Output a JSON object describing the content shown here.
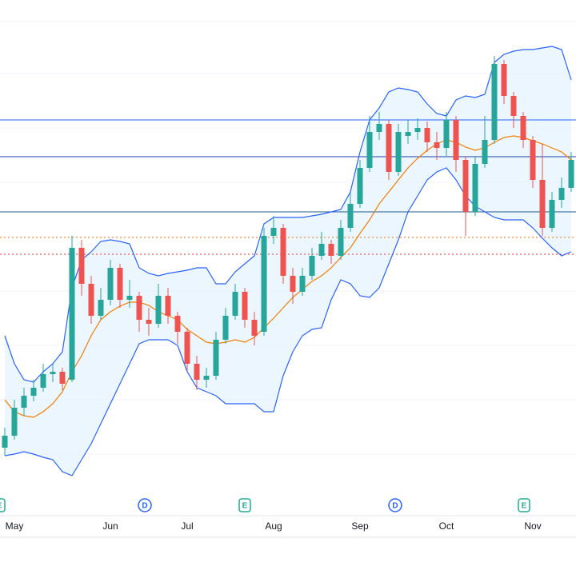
{
  "chart_data": {
    "type": "candlestick",
    "categories": [
      null,
      "May",
      null,
      null,
      null,
      null,
      null,
      null,
      null,
      null,
      null,
      "Jun",
      null,
      null,
      null,
      null,
      null,
      null,
      null,
      "Jul",
      null,
      null,
      null,
      null,
      null,
      null,
      null,
      null,
      "Aug",
      null,
      null,
      null,
      null,
      null,
      null,
      null,
      null,
      "Sep",
      null,
      null,
      null,
      null,
      null,
      null,
      null,
      null,
      "Oct",
      null,
      null,
      null,
      null,
      null,
      null,
      null,
      null,
      "Nov",
      null,
      null,
      null,
      null
    ],
    "open": [
      140,
      155,
      190,
      205,
      215,
      232,
      235,
      225,
      390,
      345,
      305,
      325,
      365,
      325,
      330,
      300,
      295,
      330,
      305,
      285,
      245,
      225,
      230,
      275,
      305,
      335,
      300,
      285,
      405,
      415,
      355,
      335,
      355,
      380,
      395,
      380,
      415,
      445,
      490,
      535,
      545,
      485,
      530,
      535,
      540,
      522,
      515,
      550,
      500,
      435,
      495,
      525,
      620,
      580,
      555,
      525,
      475,
      415,
      450,
      465
    ],
    "high": [
      165,
      200,
      215,
      225,
      245,
      245,
      240,
      405,
      400,
      355,
      340,
      375,
      370,
      350,
      335,
      315,
      345,
      340,
      310,
      290,
      255,
      240,
      285,
      315,
      345,
      340,
      310,
      415,
      430,
      420,
      365,
      365,
      390,
      410,
      400,
      425,
      460,
      500,
      555,
      560,
      550,
      545,
      550,
      552,
      548,
      535,
      560,
      555,
      505,
      505,
      555,
      630,
      625,
      585,
      560,
      530,
      520,
      460,
      478,
      510
    ],
    "low": [
      130,
      150,
      180,
      198,
      210,
      222,
      212,
      222,
      330,
      295,
      300,
      318,
      315,
      315,
      285,
      280,
      290,
      295,
      270,
      235,
      212,
      215,
      225,
      270,
      300,
      290,
      268,
      280,
      395,
      345,
      320,
      330,
      350,
      375,
      370,
      375,
      410,
      440,
      485,
      525,
      475,
      480,
      520,
      525,
      510,
      500,
      505,
      485,
      405,
      430,
      490,
      520,
      570,
      540,
      515,
      465,
      405,
      410,
      440,
      460
    ],
    "close": [
      155,
      190,
      205,
      215,
      232,
      235,
      220,
      390,
      345,
      305,
      325,
      365,
      325,
      330,
      300,
      295,
      330,
      305,
      285,
      245,
      225,
      230,
      275,
      305,
      335,
      300,
      280,
      405,
      415,
      355,
      335,
      355,
      380,
      395,
      380,
      415,
      445,
      490,
      535,
      545,
      485,
      535,
      535,
      540,
      522,
      515,
      550,
      500,
      435,
      495,
      525,
      620,
      580,
      555,
      525,
      475,
      415,
      450,
      465,
      500
    ],
    "up_color": "#26a69a",
    "down_color": "#ef5350",
    "bands": [
      {
        "color": "#2962ff",
        "values": [
          280,
          245,
          225,
          222,
          235,
          245,
          260,
          340,
          375,
          385,
          398,
          400,
          398,
          395,
          365,
          358,
          355,
          358,
          360,
          362,
          365,
          365,
          345,
          345,
          360,
          370,
          380,
          420,
          428,
          428,
          428,
          428,
          430,
          432,
          435,
          438,
          460,
          510,
          550,
          565,
          585,
          590,
          588,
          585,
          570,
          558,
          555,
          575,
          580,
          578,
          582,
          622,
          632,
          636,
          638,
          638,
          640,
          642,
          638,
          600
        ]
      },
      {
        "color": "#f57c00",
        "values": [
          200,
          185,
          180,
          178,
          185,
          195,
          210,
          235,
          255,
          280,
          300,
          310,
          317,
          322,
          322,
          318,
          310,
          305,
          300,
          288,
          280,
          272,
          270,
          272,
          275,
          272,
          278,
          290,
          302,
          315,
          328,
          338,
          348,
          355,
          365,
          378,
          390,
          408,
          425,
          445,
          460,
          475,
          490,
          502,
          512,
          520,
          525,
          522,
          516,
          512,
          515,
          522,
          528,
          530,
          528,
          524,
          520,
          515,
          510,
          500
        ]
      },
      {
        "color": "#2962ff",
        "values": [
          130,
          132,
          135,
          132,
          128,
          125,
          110,
          105,
          125,
          145,
          170,
          195,
          220,
          245,
          270,
          275,
          275,
          275,
          268,
          235,
          215,
          210,
          205,
          195,
          195,
          195,
          195,
          185,
          185,
          230,
          260,
          280,
          288,
          290,
          325,
          350,
          345,
          330,
          328,
          340,
          370,
          400,
          435,
          455,
          475,
          485,
          490,
          475,
          455,
          442,
          435,
          428,
          425,
          425,
          425,
          415,
          402,
          390,
          380,
          385
        ]
      }
    ],
    "band_fill": "#e3f2fd",
    "levels": [
      {
        "value": 550,
        "color": "#2962ff",
        "dash": false
      },
      {
        "value": 504,
        "color": "#1e40af",
        "dash": false
      },
      {
        "value": 435,
        "color": "#1e5a8a",
        "dash": false
      },
      {
        "value": 403,
        "color": "#f57c00",
        "dash": true
      },
      {
        "value": 382,
        "color": "#e53935",
        "dash": true
      }
    ],
    "ylim": [
      0,
      700
    ],
    "events": [
      "E",
      "D",
      "E",
      "D",
      "E"
    ]
  }
}
